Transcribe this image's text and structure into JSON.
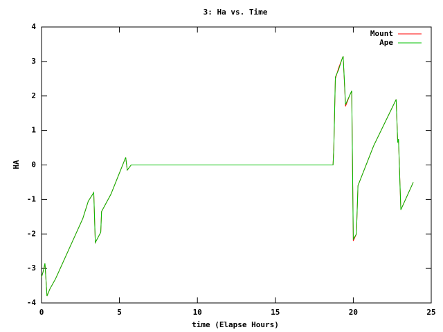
{
  "chart_data": {
    "type": "line",
    "title": "3: Ha vs. Time",
    "x_label": "time (Elapse Hours)",
    "y_label": "HA",
    "x": [
      0,
      0.1,
      0.22,
      0.35,
      0.53,
      0.9,
      1.8,
      2.65,
      3.0,
      3.35,
      3.45,
      3.8,
      3.85,
      4.45,
      5.4,
      5.5,
      5.75,
      18.7,
      18.75,
      18.85,
      19.05,
      19.3,
      19.35,
      19.45,
      19.5,
      19.8,
      19.9,
      20.0,
      20.2,
      20.3,
      21.3,
      22.75,
      22.85,
      22.9,
      23.05,
      23.85
    ],
    "series": [
      {
        "name": "Mount",
        "color": "#ff0000",
        "values": [
          -3.25,
          -3.1,
          -2.85,
          -3.8,
          -3.6,
          -3.3,
          -2.4,
          -1.55,
          -1.05,
          -0.8,
          -2.25,
          -1.95,
          -1.35,
          -0.85,
          0.22,
          -0.15,
          0,
          0,
          0.5,
          2.5,
          2.8,
          3.1,
          3.15,
          2.2,
          1.7,
          2.05,
          2.15,
          -2.2,
          -2.0,
          -0.6,
          0.55,
          1.9,
          0.65,
          0.75,
          -1.3,
          -0.5
        ]
      },
      {
        "name": "Ape",
        "color": "#00c000",
        "values": [
          -3.25,
          -3.1,
          -2.85,
          -3.8,
          -3.6,
          -3.3,
          -2.4,
          -1.55,
          -1.05,
          -0.8,
          -2.25,
          -1.95,
          -1.35,
          -0.85,
          0.22,
          -0.15,
          0,
          0,
          0.45,
          2.55,
          2.75,
          3.1,
          3.15,
          2.25,
          1.75,
          2.05,
          2.15,
          -2.15,
          -2.0,
          -0.6,
          0.55,
          1.9,
          0.65,
          0.75,
          -1.3,
          -0.5
        ]
      }
    ],
    "xlim": [
      0,
      25
    ],
    "xticks": [
      0,
      5,
      10,
      15,
      20,
      25
    ],
    "ylim": [
      -4,
      4
    ],
    "yticks": [
      -4,
      -3,
      -2,
      -1,
      0,
      1,
      2,
      3,
      4
    ],
    "legend": "top-right",
    "grid": false
  }
}
